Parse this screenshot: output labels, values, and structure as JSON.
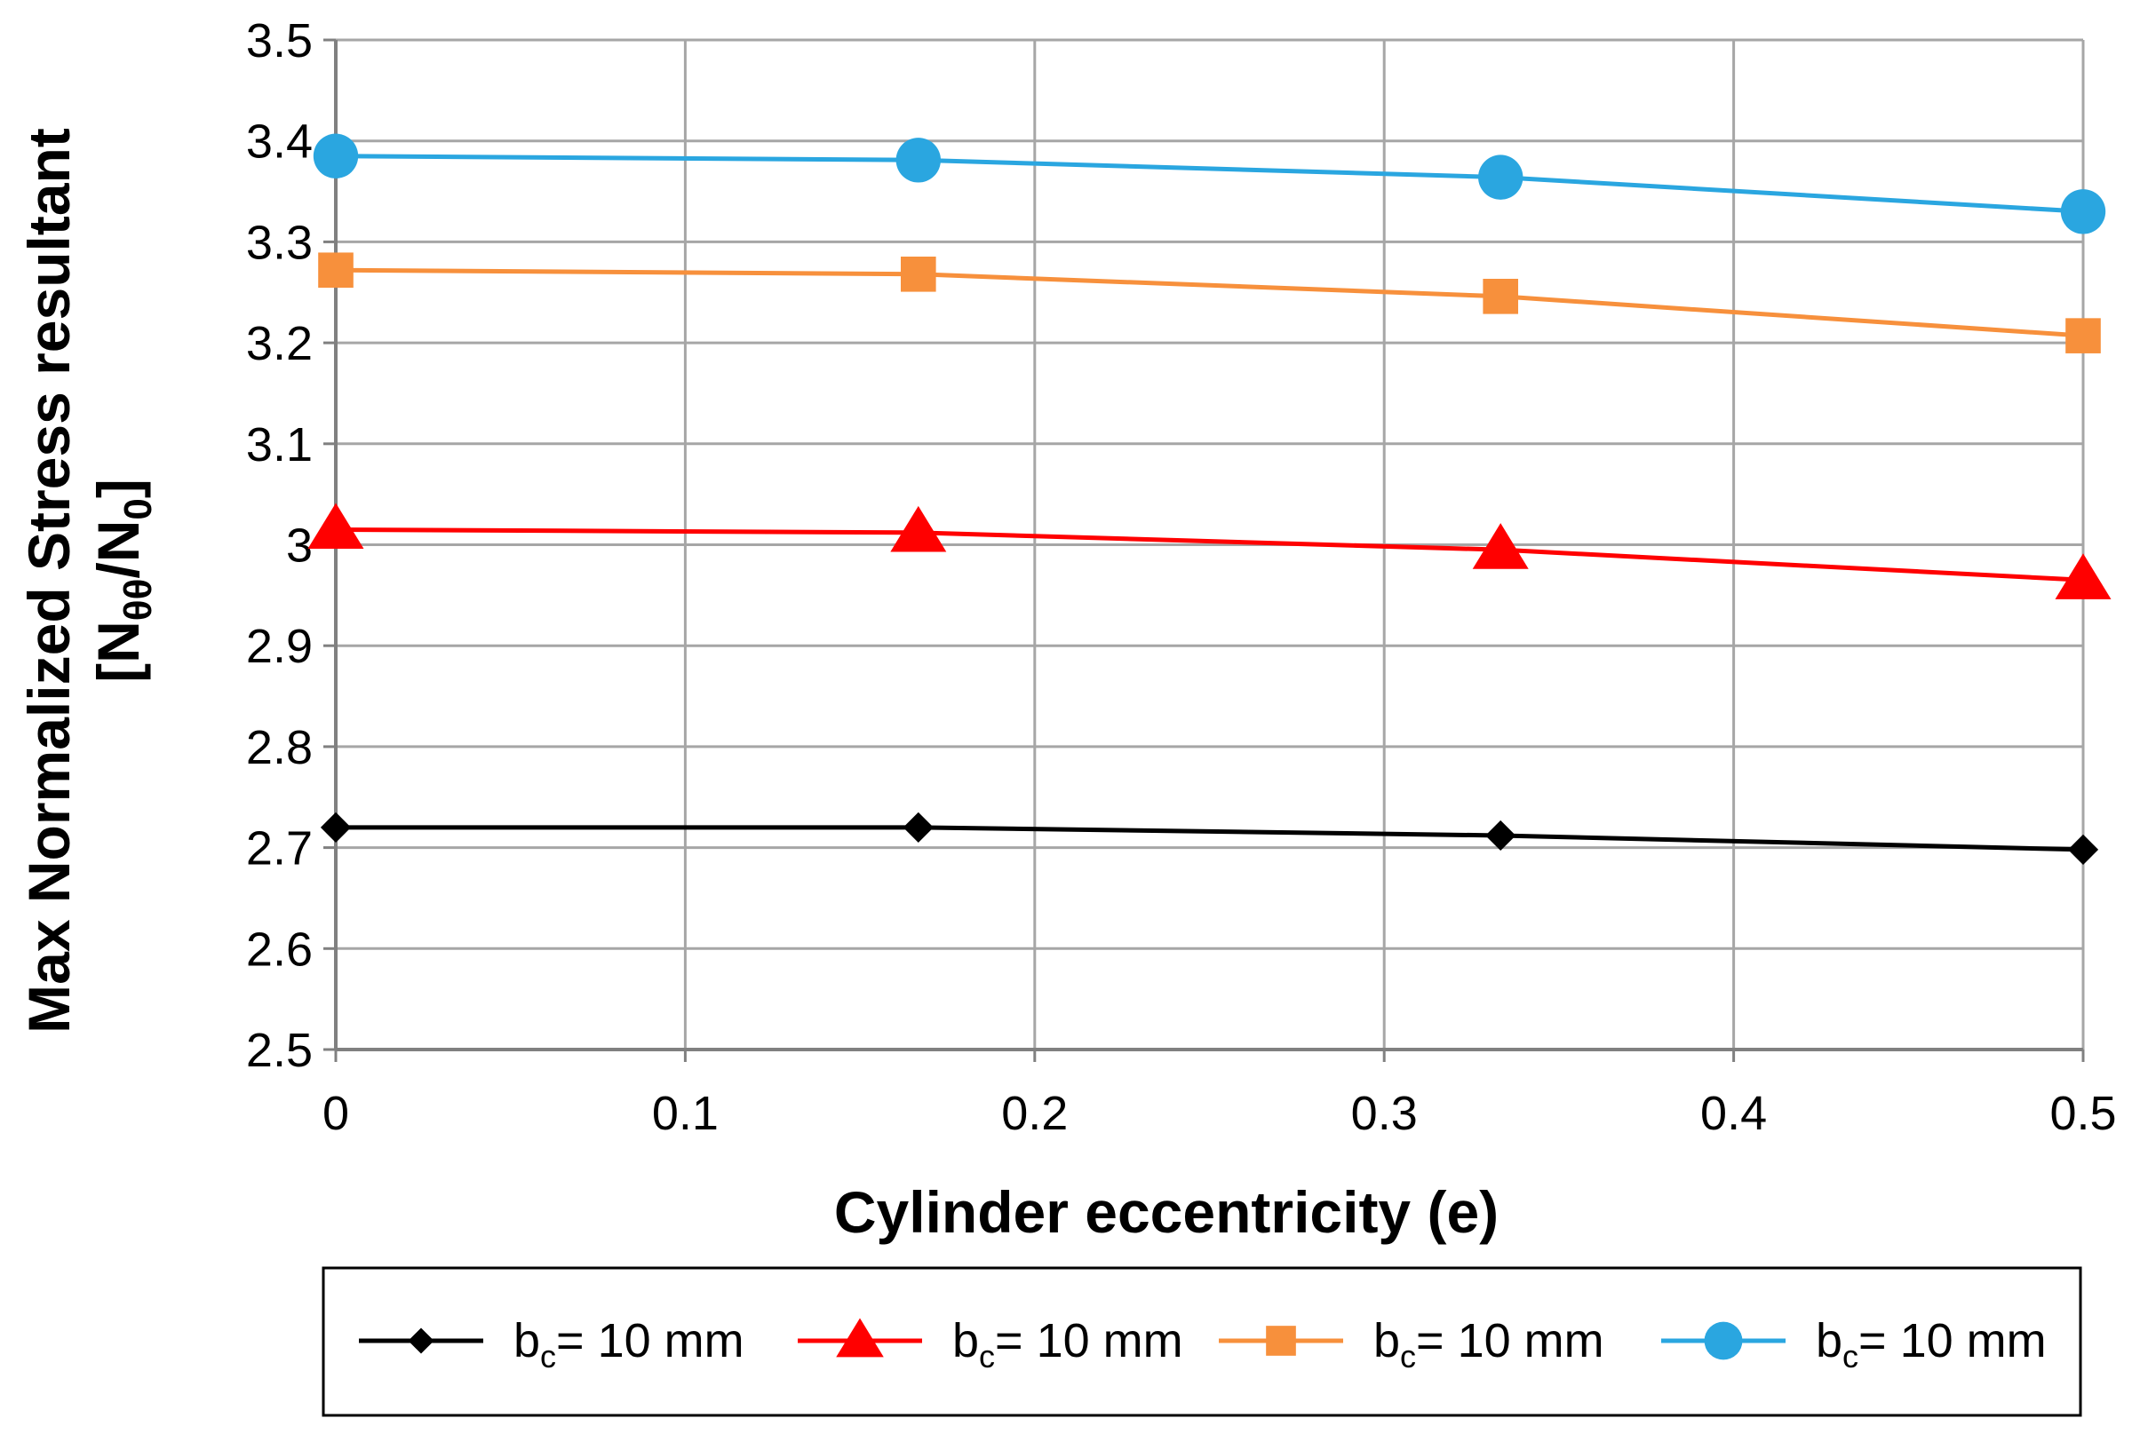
{
  "chart_data": {
    "type": "line",
    "title": "",
    "xlabel": "Cylinder eccentricity (e)",
    "ylabel_line1": "Max Normalized Stress resultant",
    "ylabel_line2": {
      "open": "[N",
      "sub1": "θθ",
      "mid": "/N",
      "sub2": "0",
      "close": "]"
    },
    "xlim": [
      0,
      0.5
    ],
    "ylim": [
      2.5,
      3.5
    ],
    "xticks": [
      0,
      0.1,
      0.2,
      0.3,
      0.4,
      0.5
    ],
    "xtick_labels": [
      "0",
      "0.1",
      "0.2",
      "0.3",
      "0.4",
      "0.5"
    ],
    "yticks": [
      2.5,
      2.6,
      2.7,
      2.8,
      2.9,
      3.0,
      3.1,
      3.2,
      3.3,
      3.4,
      3.5
    ],
    "ytick_labels": [
      "2.5",
      "2.6",
      "2.7",
      "2.8",
      "2.9",
      "3",
      "3.1",
      "3.2",
      "3.3",
      "3.4",
      "3.5"
    ],
    "grid": true,
    "legend_position": "bottom",
    "x": [
      0,
      0.1667,
      0.3333,
      0.5
    ],
    "series": [
      {
        "name": "b",
        "sub": "c",
        "suffix": "= 10 mm",
        "color": "#000000",
        "marker": "diamond",
        "values": [
          2.72,
          2.72,
          2.712,
          2.698
        ]
      },
      {
        "name": "b",
        "sub": "c",
        "suffix": "= 10 mm",
        "color": "#ff0000",
        "marker": "triangle",
        "values": [
          3.015,
          3.012,
          2.995,
          2.965
        ]
      },
      {
        "name": "b",
        "sub": "c",
        "suffix": "= 10 mm",
        "color": "#f7903c",
        "marker": "square",
        "values": [
          3.272,
          3.268,
          3.246,
          3.207
        ]
      },
      {
        "name": "b",
        "sub": "c",
        "suffix": "= 10 mm",
        "color": "#2aa6e0",
        "marker": "circle",
        "values": [
          3.385,
          3.381,
          3.364,
          3.33
        ]
      }
    ]
  }
}
